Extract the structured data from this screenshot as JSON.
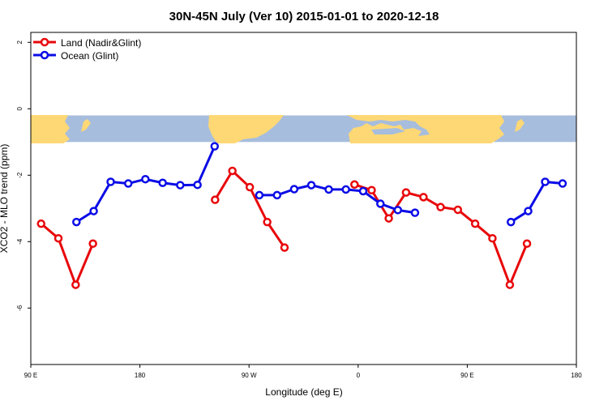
{
  "chart_data": {
    "type": "line",
    "title": "30N-45N July (Ver 10)   2015-01-01 to 2020-12-18",
    "xlabel": "Longitude (deg E)",
    "ylabel": "XCO2 - MLO trend (ppm)",
    "xlim": [
      90,
      450
    ],
    "ylim": [
      -7.7,
      2.3
    ],
    "x_ticks": [
      {
        "value": 90,
        "label": "90 E"
      },
      {
        "value": 162,
        "label": "180"
      },
      {
        "value": 234,
        "label": "90 W"
      },
      {
        "value": 306,
        "label": "0"
      },
      {
        "value": 378,
        "label": "90 E"
      },
      {
        "value": 450,
        "label": "180"
      }
    ],
    "y_ticks": [
      {
        "value": 2,
        "label": "2"
      },
      {
        "value": 0,
        "label": "0"
      },
      {
        "value": -2,
        "label": "-2"
      },
      {
        "value": -4,
        "label": "-4"
      },
      {
        "value": -6,
        "label": "-6"
      }
    ],
    "map_band": {
      "y_top": -0.2,
      "y_bottom": -1.0,
      "ocean_color": "#a7bddd",
      "land_color": "#fed875"
    },
    "legend_position": "top-left",
    "series": [
      {
        "name": "Land (Nadir&Glint)",
        "color": "#e8070a",
        "segments": [
          [
            [
              96.8,
              -3.46
            ],
            [
              108.2,
              -3.9
            ],
            [
              119.6,
              -5.3
            ],
            [
              131,
              -4.06
            ]
          ],
          [
            [
              211.6,
              -2.74
            ],
            [
              223,
              -1.87
            ],
            [
              234.5,
              -2.36
            ],
            [
              246,
              -3.41
            ],
            [
              257.4,
              -4.18
            ]
          ],
          [
            [
              303.6,
              -2.28
            ],
            [
              314.9,
              -2.45
            ],
            [
              326.2,
              -3.3
            ],
            [
              337.6,
              -2.52
            ],
            [
              349.1,
              -2.66
            ],
            [
              360.4,
              -2.96
            ],
            [
              371.8,
              -3.04
            ],
            [
              383.2,
              -3.46
            ],
            [
              394.6,
              -3.9
            ],
            [
              406.1,
              -5.3
            ],
            [
              417.4,
              -4.06
            ]
          ]
        ]
      },
      {
        "name": "Ocean (Glint)",
        "color": "#0b0ce6",
        "segments": [
          [
            [
              120.1,
              -3.41
            ],
            [
              131.5,
              -3.08
            ],
            [
              142.7,
              -2.2
            ],
            [
              154.3,
              -2.25
            ],
            [
              165.6,
              -2.12
            ],
            [
              177,
              -2.23
            ],
            [
              188.6,
              -2.3
            ],
            [
              200,
              -2.29
            ],
            [
              211.3,
              -1.13
            ]
          ],
          [
            [
              240.8,
              -2.6
            ],
            [
              252.5,
              -2.6
            ],
            [
              263.8,
              -2.42
            ],
            [
              275.1,
              -2.3
            ],
            [
              286.6,
              -2.43
            ],
            [
              297.9,
              -2.43
            ],
            [
              309.3,
              -2.48
            ],
            [
              320.7,
              -2.86
            ],
            [
              332.2,
              -3.05
            ],
            [
              343.5,
              -3.13
            ]
          ],
          [
            [
              406.8,
              -3.41
            ],
            [
              418.2,
              -3.08
            ],
            [
              429.4,
              -2.2
            ],
            [
              440.9,
              -2.25
            ]
          ]
        ]
      }
    ]
  }
}
